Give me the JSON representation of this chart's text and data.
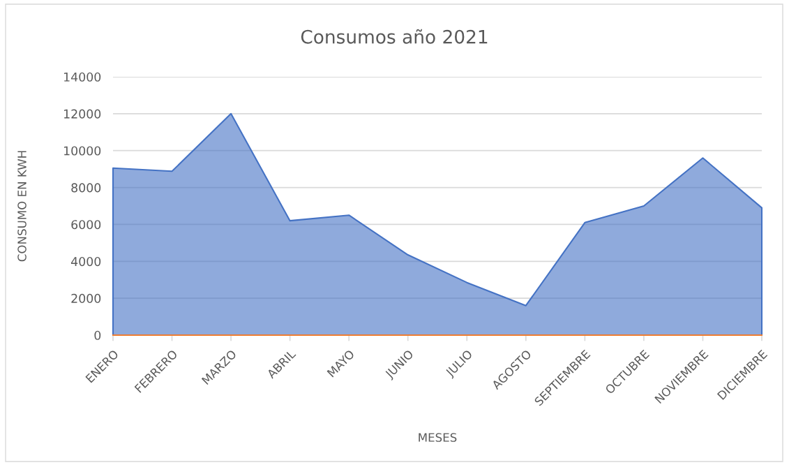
{
  "chart_data": {
    "type": "area",
    "title": "Consumos año 2021",
    "xlabel": "MESES",
    "ylabel": "CONSUMO EN KWH",
    "categories": [
      "ENERO",
      "FEBRERO",
      "MARZO",
      "ABRIL",
      "MAYO",
      "JUNIO",
      "JULIO",
      "AGOSTO",
      "SEPTIEMBRE",
      "OCTUBRE",
      "NOVIEMBRE",
      "DICIEMBRE"
    ],
    "series": [
      {
        "color": "#4472c4",
        "values": [
          9050,
          8880,
          12000,
          6200,
          6500,
          4350,
          2850,
          1600,
          6100,
          7000,
          9600,
          6900
        ]
      },
      {
        "type": "line",
        "color": "#ed7d31",
        "values": [
          0,
          0,
          0,
          0,
          0,
          0,
          0,
          0,
          0,
          0,
          0,
          0
        ]
      }
    ],
    "ylim": [
      0,
      14000
    ],
    "yticks": [
      0,
      2000,
      4000,
      6000,
      8000,
      10000,
      12000,
      14000
    ],
    "grid": "y"
  }
}
